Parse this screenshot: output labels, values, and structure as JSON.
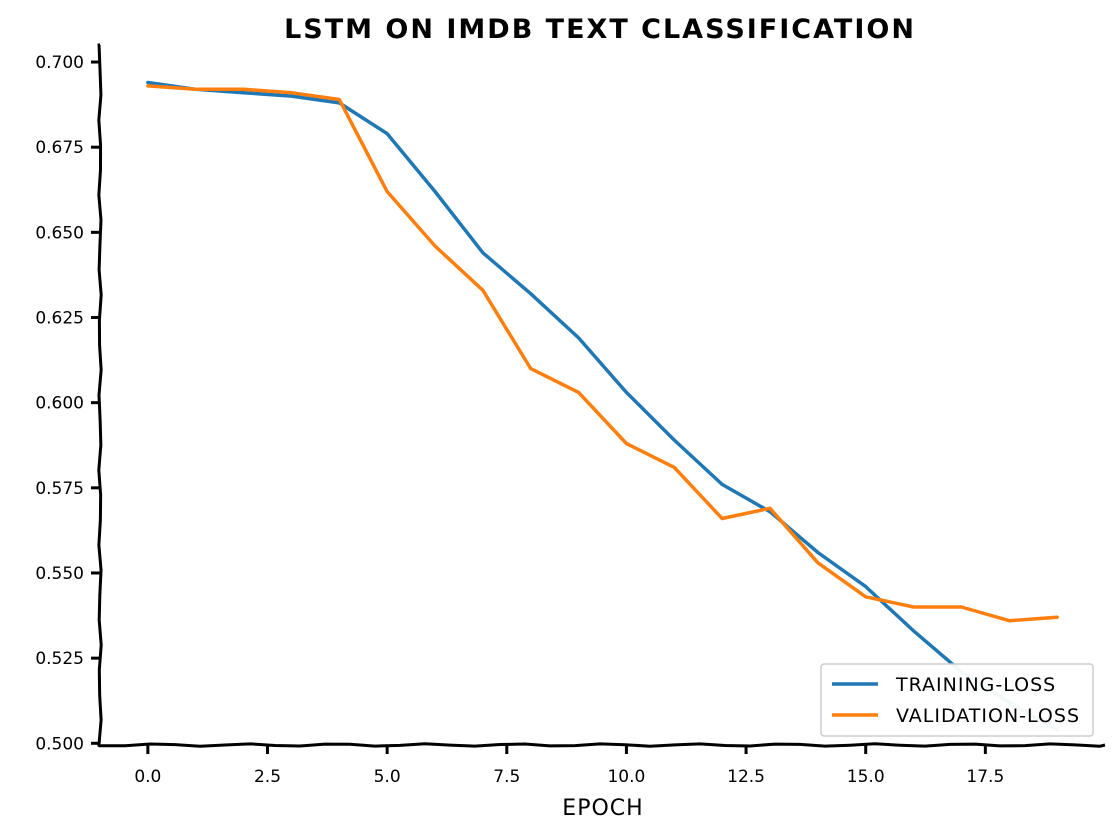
{
  "chart_data": {
    "type": "line",
    "title": "LSTM ON IMDB TEXT CLASSIFICATION",
    "xlabel": "EPOCH",
    "ylabel": "",
    "xlim": [
      -1,
      20
    ],
    "ylim": [
      0.4995,
      0.705
    ],
    "xticks": [
      0.0,
      2.5,
      5.0,
      7.5,
      10.0,
      12.5,
      15.0,
      17.5
    ],
    "xtick_labels": [
      "0.0",
      "2.5",
      "5.0",
      "7.5",
      "10.0",
      "12.5",
      "15.0",
      "17.5"
    ],
    "yticks": [
      0.5,
      0.525,
      0.55,
      0.575,
      0.6,
      0.625,
      0.65,
      0.675,
      0.7
    ],
    "ytick_labels": [
      "0.500",
      "0.525",
      "0.550",
      "0.575",
      "0.600",
      "0.625",
      "0.650",
      "0.675",
      "0.700"
    ],
    "grid": false,
    "legend_position": "bottom-right",
    "x": [
      0,
      1,
      2,
      3,
      4,
      5,
      6,
      7,
      8,
      9,
      10,
      11,
      12,
      13,
      14,
      15,
      16,
      17,
      18,
      19
    ],
    "series": [
      {
        "name": "TRAINING-LOSS",
        "color": "#1f77b4",
        "values": [
          0.694,
          0.692,
          0.691,
          0.69,
          0.688,
          0.679,
          0.662,
          0.644,
          0.632,
          0.619,
          0.603,
          0.589,
          0.576,
          0.568,
          0.556,
          0.546,
          0.533,
          0.521,
          0.512,
          0.504
        ]
      },
      {
        "name": "VALIDATION-LOSS",
        "color": "#ff7f0e",
        "values": [
          0.693,
          0.692,
          0.692,
          0.691,
          0.689,
          0.662,
          0.646,
          0.633,
          0.61,
          0.603,
          0.588,
          0.581,
          0.566,
          0.569,
          0.553,
          0.543,
          0.54,
          0.54,
          0.536,
          0.537
        ]
      }
    ]
  }
}
